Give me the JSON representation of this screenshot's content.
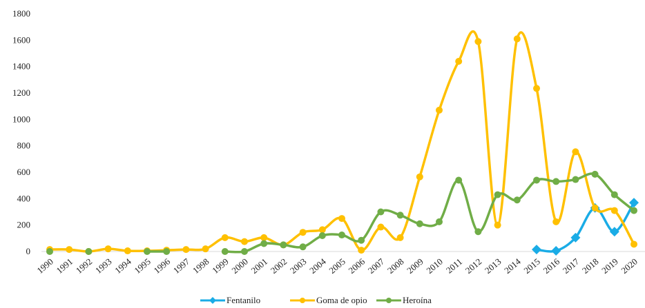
{
  "chart_data": {
    "type": "line",
    "x": [
      1990,
      1991,
      1992,
      1993,
      1994,
      1995,
      1996,
      1997,
      1998,
      1999,
      2000,
      2001,
      2002,
      2003,
      2004,
      2005,
      2006,
      2007,
      2008,
      2009,
      2010,
      2011,
      2012,
      2013,
      2014,
      2015,
      2016,
      2017,
      2018,
      2019,
      2020
    ],
    "xlim": [
      1990,
      2020
    ],
    "ylim": [
      0,
      1800
    ],
    "yticks": [
      0,
      200,
      400,
      600,
      800,
      1000,
      1200,
      1400,
      1600,
      1800
    ],
    "grid": false,
    "legend": "bottom",
    "series": [
      {
        "name": "Fentanilo",
        "color": "#1aace6",
        "marker": "diamond",
        "values": [
          null,
          null,
          null,
          null,
          null,
          null,
          null,
          null,
          null,
          null,
          null,
          null,
          null,
          null,
          null,
          null,
          null,
          null,
          null,
          null,
          null,
          null,
          null,
          null,
          null,
          15,
          5,
          105,
          330,
          150,
          370
        ]
      },
      {
        "name": "Goma de opio",
        "color": "#ffc000",
        "marker": "circle",
        "values": [
          15,
          15,
          0,
          20,
          5,
          5,
          10,
          15,
          20,
          105,
          75,
          105,
          50,
          145,
          165,
          250,
          10,
          185,
          105,
          565,
          1070,
          1440,
          1590,
          200,
          1610,
          1235,
          225,
          755,
          330,
          310,
          55
        ]
      },
      {
        "name": "Heroína",
        "color": "#70ad47",
        "marker": "circle",
        "values": [
          0,
          null,
          0,
          null,
          null,
          0,
          0,
          null,
          null,
          0,
          0,
          60,
          50,
          35,
          120,
          125,
          85,
          300,
          275,
          210,
          225,
          540,
          150,
          430,
          390,
          540,
          530,
          545,
          585,
          430,
          310
        ]
      }
    ]
  }
}
